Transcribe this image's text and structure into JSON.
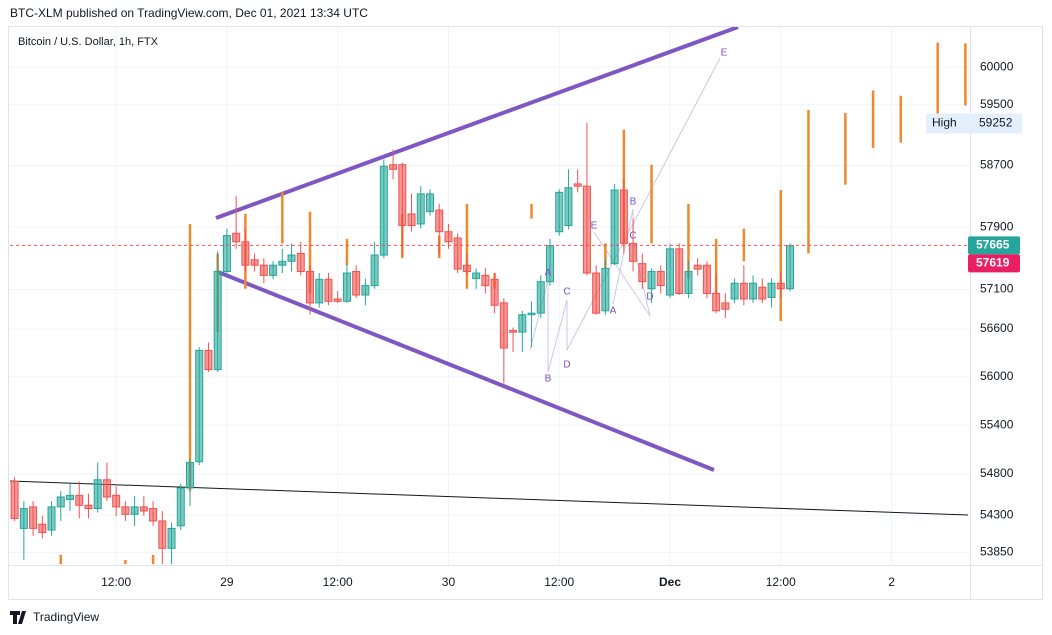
{
  "header": "BTC-XLM published on TradingView.com, Dec 01, 2021 13:34 UTC",
  "footer": "TradingView",
  "chart_data": {
    "type": "candlestick",
    "title": "Bitcoin / U.S. Dollar, 1h, FTX",
    "log": true,
    "grid": true,
    "up_color": "#26a69a",
    "down_color": "#ef5350",
    "x": [
      1,
      2,
      3,
      4,
      5,
      6,
      7,
      8,
      9,
      10,
      11,
      12,
      13,
      14,
      15,
      16,
      17,
      18,
      19,
      20,
      21,
      22,
      23,
      24,
      25,
      26,
      27,
      28,
      29,
      30,
      31,
      32,
      33,
      34,
      35,
      36,
      37,
      38,
      39,
      40,
      41,
      42,
      43,
      44,
      45,
      46,
      47,
      48,
      49,
      50,
      51,
      52,
      53,
      54,
      55,
      56,
      57,
      58,
      59,
      60,
      61,
      62,
      63,
      64,
      65,
      66,
      67,
      68,
      69,
      70,
      71,
      72,
      73,
      74,
      75,
      76,
      77,
      78,
      79,
      80,
      81,
      82,
      83,
      84,
      85
    ],
    "open": [
      54710,
      54140,
      54400,
      54190,
      54120,
      54400,
      54490,
      54540,
      54420,
      54380,
      54730,
      54540,
      54400,
      54310,
      54400,
      54380,
      54230,
      53900,
      54170,
      54630,
      54950,
      56330,
      56090,
      57330,
      57820,
      57710,
      57480,
      57410,
      57280,
      57410,
      57460,
      57560,
      57330,
      56930,
      57230,
      56980,
      56950,
      57330,
      57030,
      57150,
      57540,
      58710,
      58710,
      58070,
      57940,
      58100,
      58120,
      57840,
      57760,
      57410,
      57240,
      57280,
      57230,
      56930,
      56580,
      56560,
      56780,
      56800,
      57200,
      57840,
      57920,
      58460,
      58430,
      57310,
      56830,
      57430,
      58380,
      57690,
      57430,
      57110,
      57330,
      57030,
      57620,
      57050,
      57410,
      57410,
      57050,
      56930,
      56980,
      57180,
      56980,
      57130,
      57000,
      57180,
      57110
    ],
    "high": [
      54760,
      54470,
      54470,
      54290,
      54470,
      54590,
      54680,
      54710,
      54560,
      54940,
      54940,
      54650,
      54470,
      54530,
      54530,
      54470,
      54350,
      54210,
      54680,
      54990,
      56370,
      56430,
      57590,
      57880,
      58300,
      57880,
      57560,
      57500,
      57460,
      57620,
      57690,
      57710,
      57410,
      57310,
      57310,
      57080,
      57430,
      57410,
      57240,
      57710,
      58780,
      58910,
      58740,
      58330,
      58430,
      58390,
      58200,
      57940,
      57820,
      57560,
      57370,
      57370,
      57310,
      56990,
      56620,
      56830,
      56950,
      57280,
      57750,
      58390,
      58650,
      58650,
      59260,
      57410,
      57500,
      58460,
      58520,
      58010,
      57560,
      57370,
      57410,
      57690,
      57690,
      57460,
      57500,
      57460,
      57310,
      57050,
      57240,
      57410,
      57280,
      57240,
      57240,
      57330,
      57690
    ],
    "low": [
      54230,
      53760,
      54050,
      54020,
      54050,
      54230,
      54350,
      54260,
      54260,
      54330,
      54470,
      54290,
      54230,
      54170,
      54290,
      54170,
      53710,
      53710,
      54120,
      54410,
      54910,
      56060,
      56060,
      57280,
      57620,
      57330,
      57330,
      57180,
      57230,
      57310,
      57330,
      57280,
      56780,
      56870,
      56900,
      56930,
      56930,
      56990,
      56900,
      57110,
      57500,
      58520,
      57540,
      57840,
      57880,
      58050,
      57540,
      57620,
      57310,
      57280,
      57110,
      57050,
      56800,
      55920,
      56310,
      56310,
      56370,
      56740,
      57150,
      57790,
      57870,
      58350,
      57280,
      56780,
      56780,
      57410,
      57560,
      57330,
      57110,
      56930,
      57050,
      56990,
      57030,
      56990,
      57280,
      56990,
      56800,
      56740,
      56930,
      56900,
      56930,
      56930,
      56870,
      56990,
      57080
    ],
    "close": [
      54260,
      54380,
      54140,
      54090,
      54400,
      54520,
      54540,
      54420,
      54380,
      54730,
      54520,
      54400,
      54310,
      54400,
      54350,
      54230,
      53900,
      54140,
      54630,
      54940,
      56330,
      56090,
      57330,
      57790,
      57710,
      57410,
      57410,
      57280,
      57410,
      57460,
      57540,
      57330,
      56930,
      57230,
      56950,
      56950,
      57310,
      57030,
      57150,
      57540,
      58690,
      58650,
      57920,
      57920,
      58330,
      58330,
      57840,
      57710,
      57360,
      57330,
      57310,
      57150,
      56900,
      56360,
      56560,
      56780,
      56800,
      57200,
      57660,
      58350,
      58410,
      58430,
      57310,
      56800,
      57370,
      58380,
      57690,
      57460,
      57200,
      57330,
      57150,
      57620,
      57050,
      57330,
      57360,
      57050,
      56830,
      56850,
      57180,
      56980,
      57180,
      56980,
      57180,
      57110,
      57660
    ],
    "overlay": {
      "color": "#f0892c",
      "x": [
        6,
        13,
        16,
        20,
        23,
        26,
        30,
        33,
        37,
        43,
        47,
        50,
        53,
        57,
        65,
        67,
        70,
        74,
        77,
        80,
        84,
        87,
        91,
        94,
        97,
        101,
        104
      ],
      "high": [
        53820,
        53760,
        53820,
        57940,
        57560,
        58070,
        58350,
        58100,
        57750,
        58070,
        57790,
        58200,
        57310,
        58200,
        57690,
        59170,
        58710,
        58200,
        57750,
        57880,
        58380,
        59430,
        59390,
        59690,
        59620,
        60330,
        60320
      ],
      "low": [
        53710,
        53710,
        53710,
        54590,
        56560,
        57110,
        57690,
        57050,
        57410,
        57500,
        57500,
        57110,
        57110,
        58010,
        57370,
        57690,
        57690,
        57240,
        57050,
        57460,
        56700,
        57560,
        58450,
        58930,
        59000,
        59230,
        59490
      ]
    },
    "xlim": [
      0.5,
      104.5
    ],
    "xticks": [
      {
        "value": 12,
        "label": "12:00"
      },
      {
        "value": 24,
        "label": "29"
      },
      {
        "value": 36,
        "label": "12:00"
      },
      {
        "value": 48,
        "label": "30"
      },
      {
        "value": 60,
        "label": "12:00"
      },
      {
        "value": 72,
        "label": "Dec"
      },
      {
        "value": 84,
        "label": "12:00"
      },
      {
        "value": 96,
        "label": "2"
      }
    ],
    "ylim": [
      53700,
      60540
    ],
    "yticks": [
      53850,
      54300,
      54800,
      55400,
      56000,
      56600,
      57100,
      57900,
      58700,
      59500,
      60000
    ],
    "last_price": 57665,
    "last_price_color": "#26a69a",
    "second_price": 57619,
    "second_price_color": "#e91e63",
    "high_label": "High",
    "high_value": 59252,
    "pattern_labels": [
      "A",
      "B",
      "C",
      "D",
      "E",
      "A",
      "B",
      "C",
      "D",
      "E"
    ]
  }
}
